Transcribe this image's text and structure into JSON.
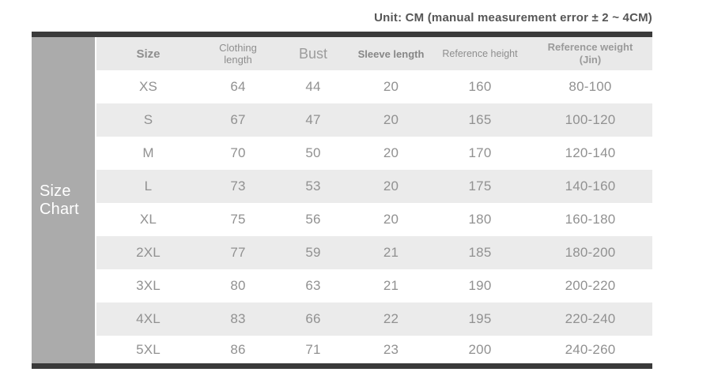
{
  "title": "Unit: CM (manual measurement error ± 2 ~ 4CM)",
  "sidebar": {
    "label_line1": "Size",
    "label_line2": "Chart"
  },
  "chart_data": {
    "type": "table",
    "title": "Size Chart",
    "unit_note": "Unit: CM (manual measurement error ± 2 ~ 4CM)",
    "columns": [
      "Size",
      "Clothing length",
      "Bust",
      "Sleeve length",
      "Reference height",
      "Reference weight (Jin)"
    ],
    "rows": [
      [
        "XS",
        "64",
        "44",
        "20",
        "160",
        "80-100"
      ],
      [
        "S",
        "67",
        "47",
        "20",
        "165",
        "100-120"
      ],
      [
        "M",
        "70",
        "50",
        "20",
        "170",
        "120-140"
      ],
      [
        "L",
        "73",
        "53",
        "20",
        "175",
        "140-160"
      ],
      [
        "XL",
        "75",
        "56",
        "20",
        "180",
        "160-180"
      ],
      [
        "2XL",
        "77",
        "59",
        "21",
        "185",
        "180-200"
      ],
      [
        "3XL",
        "80",
        "63",
        "21",
        "190",
        "200-220"
      ],
      [
        "4XL",
        "83",
        "66",
        "22",
        "195",
        "220-240"
      ],
      [
        "5XL",
        "86",
        "71",
        "23",
        "200",
        "240-260"
      ]
    ],
    "layout": {
      "zebra_striping": true,
      "first_data_row_background": "white"
    }
  },
  "colors": {
    "dark_bar": "#3a3a3a",
    "header_bg": "#e9e9e9",
    "stripe_bg": "#ebebeb",
    "sidebar_bg": "#ababab",
    "sidebar_text": "#ffffff",
    "cell_text": "#919191",
    "title_text": "#565656"
  }
}
